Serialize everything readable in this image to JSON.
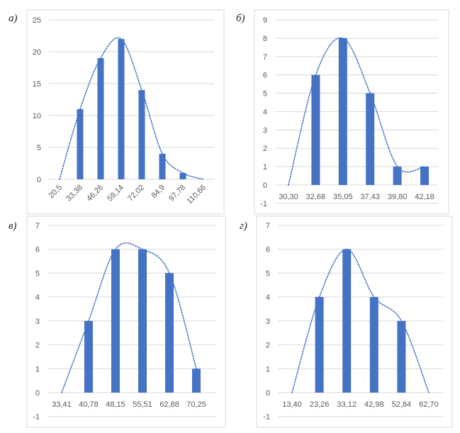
{
  "chart_data": [
    {
      "type": "bar",
      "panel_label": "а)",
      "categories": [
        "20,5",
        "33,38",
        "46,26",
        "59,14",
        "72,02",
        "84,9",
        "97,78",
        "110,66"
      ],
      "values": [
        0,
        11,
        19,
        22,
        14,
        4,
        1,
        0
      ],
      "trendline": "smoothed dotted line",
      "ylim": [
        0,
        25
      ],
      "yticks": [
        0,
        5,
        10,
        15,
        20,
        25
      ],
      "x_tick_rotation": "diagonal",
      "grid": true,
      "bar_color": "#4472C4"
    },
    {
      "type": "bar",
      "panel_label": "б)",
      "categories": [
        "30,30",
        "32,68",
        "35,05",
        "37,43",
        "39,80",
        "42,18"
      ],
      "values": [
        0,
        6,
        8,
        5,
        1,
        1
      ],
      "trendline": "smoothed dotted line",
      "ylim": [
        -1,
        9
      ],
      "yticks": [
        -1,
        0,
        1,
        2,
        3,
        4,
        5,
        6,
        7,
        8,
        9
      ],
      "grid": true,
      "bar_color": "#4472C4"
    },
    {
      "type": "bar",
      "panel_label": "в)",
      "categories": [
        "33,41",
        "40,78",
        "48,15",
        "55,51",
        "62,88",
        "70,25"
      ],
      "values": [
        0,
        3,
        6,
        6,
        5,
        1
      ],
      "trendline": "smoothed dotted line",
      "ylim": [
        -1,
        7
      ],
      "yticks": [
        -1,
        0,
        1,
        2,
        3,
        4,
        5,
        6,
        7
      ],
      "grid": true,
      "bar_color": "#4472C4"
    },
    {
      "type": "bar",
      "panel_label": "г)",
      "categories": [
        "13,40",
        "23,26",
        "33,12",
        "42,98",
        "52,84",
        "62,70"
      ],
      "values": [
        0,
        4,
        6,
        4,
        3,
        0
      ],
      "trendline": "smoothed dotted line",
      "ylim": [
        -1,
        7
      ],
      "yticks": [
        -1,
        0,
        1,
        2,
        3,
        4,
        5,
        6,
        7
      ],
      "grid": true,
      "bar_color": "#4472C4"
    }
  ]
}
